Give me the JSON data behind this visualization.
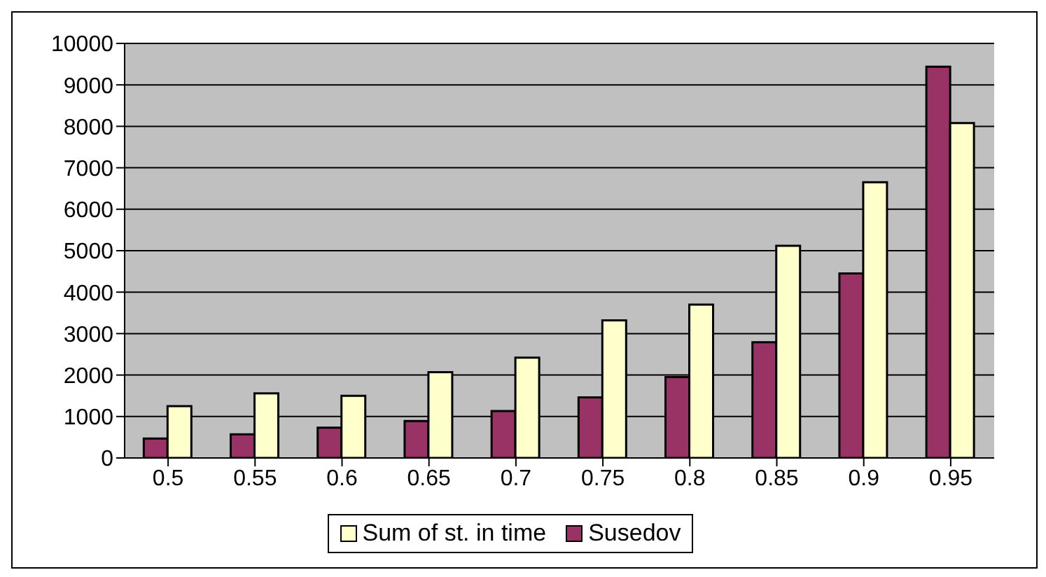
{
  "chart_data": {
    "type": "bar",
    "categories": [
      "0.5",
      "0.55",
      "0.6",
      "0.65",
      "0.7",
      "0.75",
      "0.8",
      "0.85",
      "0.9",
      "0.95"
    ],
    "series": [
      {
        "name": "Susedov",
        "color": "#993366",
        "values": [
          470,
          570,
          730,
          890,
          1130,
          1460,
          1950,
          2790,
          4450,
          9440
        ]
      },
      {
        "name": "Sum of st. in time",
        "color": "#ffffcc",
        "values": [
          1250,
          1560,
          1500,
          2070,
          2420,
          3320,
          3700,
          5120,
          6650,
          8080
        ]
      }
    ],
    "ylim": [
      0,
      10000
    ],
    "yticks": [
      0,
      1000,
      2000,
      3000,
      4000,
      5000,
      6000,
      7000,
      8000,
      9000,
      10000
    ],
    "grid": "y",
    "legend": "bottom"
  }
}
